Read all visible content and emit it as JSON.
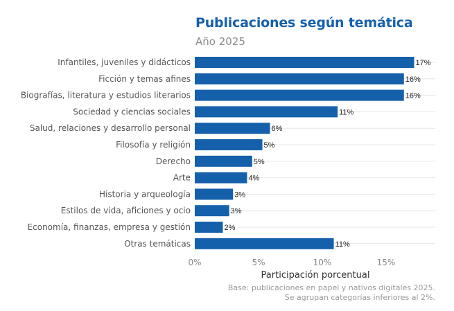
{
  "chart_data": {
    "type": "bar",
    "orientation": "horizontal",
    "title": "Publicaciones según temática",
    "subtitle": "Año 2025",
    "xlabel": "Participación porcentual",
    "ylabel": "",
    "xlim": [
      0,
      19
    ],
    "xticks": [
      0,
      5,
      10,
      15
    ],
    "xtick_labels": [
      "0%",
      "5%",
      "10%",
      "15%"
    ],
    "grid": true,
    "bar_color": "#1560ab",
    "categories": [
      "Infantiles, juveniles y didácticos",
      "Ficción y temas afines",
      "Biografías, literatura y estudios literarios",
      "Sociedad y ciencias sociales",
      "Salud, relaciones y desarrollo personal",
      "Filosofía y religión",
      "Derecho",
      "Arte",
      "Historia y arqueología",
      "Estilos de vida, aficiones y ocio",
      "Economía, finanzas, empresa y gestión",
      "Otras temáticas"
    ],
    "values": [
      17.2,
      16.4,
      16.4,
      11.2,
      5.9,
      5.3,
      4.5,
      4.1,
      3.0,
      2.7,
      2.2,
      10.9
    ],
    "data_labels": [
      "17%",
      "16%",
      "16%",
      "11%",
      "6%",
      "5%",
      "5%",
      "4%",
      "3%",
      "3%",
      "2%",
      "11%"
    ],
    "notes": [
      "Base: publicaciones en papel y nativos digitales 2025.",
      "Se agrupan categorías inferiores al 2%."
    ]
  }
}
